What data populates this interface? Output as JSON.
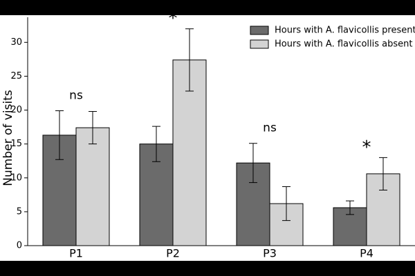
{
  "chart_data": {
    "type": "bar",
    "ylabel": "Number of visits",
    "categories": [
      "P1",
      "P2",
      "P3",
      "P4"
    ],
    "series": [
      {
        "name": "Hours with A. flavicollis present",
        "color": "#6b6b6b",
        "values": [
          16.3,
          15.0,
          12.2,
          5.6
        ],
        "errors": [
          3.6,
          2.6,
          2.9,
          1.0
        ]
      },
      {
        "name": "Hours with A. flavicollis absent",
        "color": "#d3d3d3",
        "values": [
          17.4,
          27.4,
          6.2,
          10.6
        ],
        "errors": [
          2.4,
          4.6,
          2.5,
          2.4
        ]
      }
    ],
    "annotations": [
      "ns",
      "*",
      "ns",
      "*"
    ],
    "ylim": [
      0,
      33.7
    ],
    "yticks": [
      0,
      5,
      10,
      15,
      20,
      25,
      30
    ],
    "legend": "upper right"
  }
}
